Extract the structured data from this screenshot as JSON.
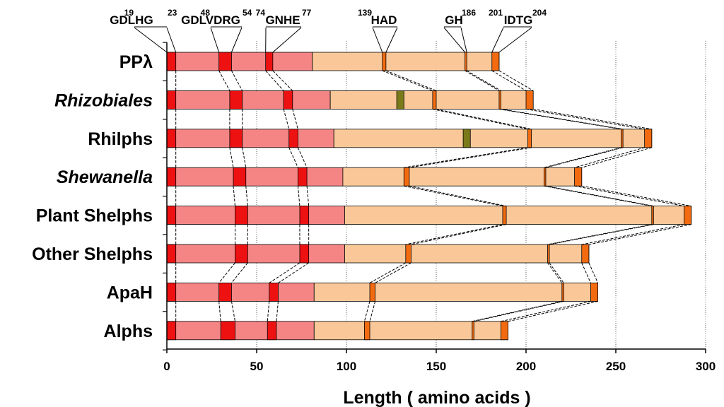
{
  "chart_data": {
    "type": "bar",
    "xlabel": "Length  ( amino acids )",
    "xlim": [
      0,
      300
    ],
    "xticks": [
      0,
      50,
      100,
      150,
      200,
      250,
      300
    ],
    "grid_vertical": true,
    "colors": {
      "motif": "#ee1111",
      "n_domain": "#f58585",
      "c_domain": "#fac898",
      "c_motif": "#f36b10",
      "insert": "#7a7a1a"
    },
    "motif_labels": [
      {
        "pre": "19",
        "text": "GDLHG",
        "post": "23",
        "pos": 5
      },
      {
        "pre": "48",
        "text": "GDLVDRG",
        "post": "54",
        "pos": 35
      },
      {
        "pre": "74",
        "text": "GNHE",
        "post": "77",
        "pos": 60
      },
      {
        "pre": "139",
        "text": "HAD",
        "post": "",
        "pos": 121
      },
      {
        "pre": "",
        "text": "GH",
        "post": "186",
        "pos": 167
      },
      {
        "pre": "201",
        "text": "IDTG",
        "post": "204",
        "pos": 184
      }
    ],
    "rows": [
      {
        "label": "PPλ",
        "italic": false,
        "n_end": 81,
        "total": 185,
        "m1": [
          0,
          5
        ],
        "m2": [
          29,
          36
        ],
        "m3": [
          55,
          59
        ],
        "c1": [
          120,
          122
        ],
        "c2": [
          166,
          167
        ],
        "c3": [
          181,
          185
        ],
        "insert": null
      },
      {
        "label": "Rhizobiales",
        "italic": true,
        "n_end": 91,
        "total": 204,
        "m1": [
          0,
          5
        ],
        "m2": [
          35,
          42
        ],
        "m3": [
          65,
          70
        ],
        "c1": [
          148,
          150
        ],
        "c2": [
          185,
          186
        ],
        "c3": [
          200,
          204
        ],
        "insert": [
          128,
          132
        ]
      },
      {
        "label": "Rhilphs",
        "italic": false,
        "n_end": 93,
        "total": 270,
        "m1": [
          0,
          5
        ],
        "m2": [
          35,
          42
        ],
        "m3": [
          68,
          73
        ],
        "c1": [
          201,
          203
        ],
        "c2": [
          253,
          254
        ],
        "c3": [
          266,
          270
        ],
        "insert": [
          165,
          169
        ]
      },
      {
        "label": "Shewanella",
        "italic": true,
        "n_end": 98,
        "total": 231,
        "m1": [
          0,
          5
        ],
        "m2": [
          37,
          44
        ],
        "m3": [
          73,
          78
        ],
        "c1": [
          132,
          135
        ],
        "c2": [
          210,
          211
        ],
        "c3": [
          227,
          231
        ],
        "insert": null
      },
      {
        "label": "Plant Shelphs",
        "italic": false,
        "n_end": 99,
        "total": 292,
        "m1": [
          0,
          5
        ],
        "m2": [
          38,
          45
        ],
        "m3": [
          74,
          79
        ],
        "c1": [
          187,
          189
        ],
        "c2": [
          270,
          271
        ],
        "c3": [
          288,
          292
        ],
        "insert": null
      },
      {
        "label": "Other Shelphs",
        "italic": false,
        "n_end": 99,
        "total": 235,
        "m1": [
          0,
          5
        ],
        "m2": [
          38,
          45
        ],
        "m3": [
          74,
          79
        ],
        "c1": [
          133,
          136
        ],
        "c2": [
          212,
          213
        ],
        "c3": [
          231,
          235
        ],
        "insert": null
      },
      {
        "label": "ApaH",
        "italic": false,
        "n_end": 82,
        "total": 240,
        "m1": [
          0,
          5
        ],
        "m2": [
          29,
          36
        ],
        "m3": [
          57,
          62
        ],
        "c1": [
          113,
          116
        ],
        "c2": [
          220,
          221
        ],
        "c3": [
          236,
          240
        ],
        "insert": null
      },
      {
        "label": "Alphs",
        "italic": false,
        "n_end": 82,
        "total": 190,
        "m1": [
          0,
          5
        ],
        "m2": [
          30,
          38
        ],
        "m3": [
          56,
          61
        ],
        "c1": [
          110,
          113
        ],
        "c2": [
          170,
          171
        ],
        "c3": [
          186,
          190
        ],
        "insert": null
      }
    ]
  }
}
